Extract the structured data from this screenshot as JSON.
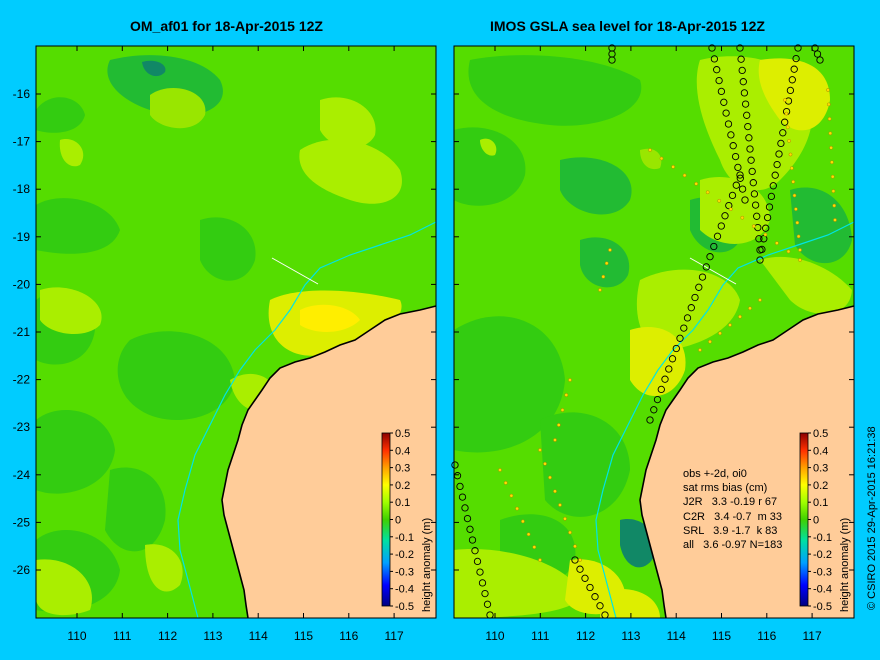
{
  "left_panel": {
    "title": "OM_af01 for 18-Apr-2015 12Z"
  },
  "right_panel": {
    "title": "IMOS GSLA sea level  for 18-Apr-2015 12Z"
  },
  "latitude_ticks": [
    "-16",
    "-17",
    "-18",
    "-19",
    "-20",
    "-21",
    "-22",
    "-23",
    "-24",
    "-25",
    "-26"
  ],
  "longitude_ticks": [
    "110",
    "111",
    "112",
    "113",
    "114",
    "115",
    "116",
    "117"
  ],
  "colorbar": {
    "label": "height anomaly (m)",
    "ticks": [
      "0.5",
      "0.4",
      "0.3",
      "0.2",
      "0.1",
      "0",
      "-0.1",
      "-0.2",
      "-0.3",
      "-0.4",
      "-0.5"
    ]
  },
  "stats": {
    "line1": "obs +-2d, oi0",
    "line2": "sat rms bias (cm)",
    "rows": [
      "J2R   3.3 -0.19 r 67",
      "C2R   3.4 -0.7  m 33",
      "SRL   3.9 -1.7  k 83",
      "all   3.6 -0.97 N=183"
    ]
  },
  "credit": "© CSIRO 2015   29-Apr-2015 16:21:38",
  "colors": {
    "background": "#00ccff",
    "land": "#ffcc99",
    "sea_green": "#55dd00",
    "coast": "#000000",
    "bathy": "#00e5e5"
  }
}
